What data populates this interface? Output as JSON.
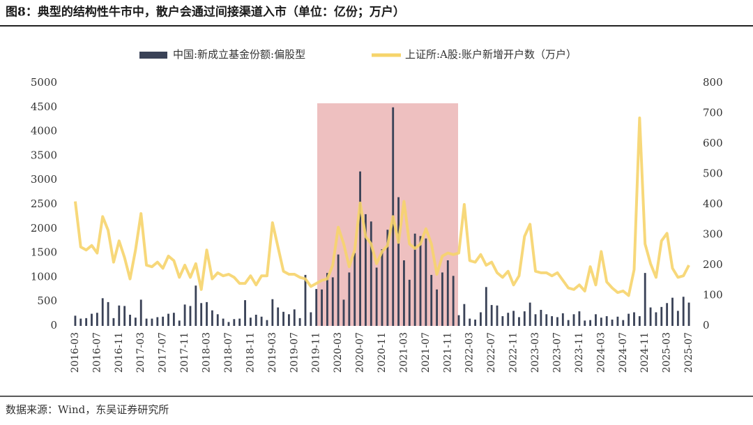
{
  "chart_data": {
    "type": "combo",
    "title": "图8：典型的结构性牛市中，散户会通过间接渠道入市（单位：亿份；万户）",
    "source": "数据来源：Wind，东吴证券研究所",
    "legend": "top",
    "categories": [
      "2016-03",
      null,
      null,
      null,
      "2016-07",
      null,
      null,
      null,
      "2016-11",
      null,
      null,
      null,
      "2017-03",
      null,
      null,
      null,
      "2017-07",
      null,
      null,
      null,
      "2017-11",
      null,
      null,
      null,
      "2018-03",
      null,
      null,
      null,
      "2018-07",
      null,
      null,
      null,
      "2018-11",
      null,
      null,
      null,
      "2019-03",
      null,
      null,
      null,
      "2019-07",
      null,
      null,
      null,
      "2019-11",
      null,
      null,
      null,
      "2020-03",
      null,
      null,
      null,
      "2020-07",
      null,
      null,
      null,
      "2020-11",
      null,
      null,
      null,
      "2021-03",
      null,
      null,
      null,
      "2021-07",
      null,
      null,
      null,
      "2021-11",
      null,
      null,
      null,
      "2022-03",
      null,
      null,
      null,
      "2022-07",
      null,
      null,
      null,
      "2022-11",
      null,
      null,
      null,
      "2023-03",
      null,
      null,
      null,
      "2023-07",
      null,
      null,
      null,
      "2023-11",
      null,
      null,
      null,
      "2024-03",
      null,
      null,
      null,
      "2024-07",
      null,
      null,
      null,
      "2024-11",
      null,
      null,
      null,
      "2025-03",
      null,
      null,
      null,
      "2025-07"
    ],
    "series": [
      {
        "name": "中国:新成立基金份额:偏股型",
        "type": "bar",
        "color": "#3a4257",
        "values": [
          210,
          150,
          160,
          250,
          270,
          570,
          490,
          160,
          420,
          410,
          230,
          170,
          540,
          150,
          150,
          180,
          190,
          250,
          270,
          110,
          440,
          410,
          830,
          470,
          490,
          320,
          240,
          150,
          80,
          140,
          150,
          530,
          170,
          230,
          190,
          120,
          550,
          380,
          290,
          240,
          340,
          160,
          1050,
          280,
          760,
          750,
          1090,
          1000,
          1470,
          540,
          1100,
          1500,
          3180,
          2300,
          2150,
          1200,
          1580,
          1980,
          4500,
          2650,
          1350,
          950,
          1900,
          1850,
          1800,
          1050,
          750,
          1100,
          1350,
          1030,
          220,
          450,
          150,
          130,
          280,
          800,
          430,
          420,
          200,
          270,
          310,
          180,
          300,
          480,
          240,
          330,
          240,
          200,
          180,
          260,
          120,
          240,
          300,
          110,
          120,
          240,
          170,
          200,
          130,
          190,
          120,
          250,
          280,
          200,
          1090,
          380,
          280,
          390,
          470,
          580,
          310,
          600,
          480
        ]
      },
      {
        "name": "上证所:A股:账户新增开户数（万户）",
        "type": "line",
        "axis": "y2",
        "color": "#f6d46b",
        "values": [
          410,
          260,
          250,
          265,
          240,
          360,
          315,
          210,
          280,
          225,
          155,
          250,
          370,
          200,
          195,
          210,
          190,
          230,
          215,
          160,
          200,
          160,
          205,
          120,
          250,
          155,
          175,
          165,
          170,
          160,
          140,
          140,
          165,
          135,
          165,
          165,
          340,
          260,
          180,
          170,
          170,
          160,
          155,
          130,
          140,
          150,
          155,
          200,
          325,
          270,
          195,
          250,
          405,
          295,
          270,
          205,
          245,
          265,
          360,
          275,
          410,
          270,
          255,
          270,
          320,
          270,
          170,
          230,
          240,
          235,
          240,
          400,
          215,
          210,
          235,
          200,
          210,
          175,
          160,
          180,
          135,
          165,
          295,
          335,
          180,
          175,
          175,
          165,
          175,
          150,
          125,
          120,
          135,
          115,
          195,
          135,
          245,
          145,
          125,
          110,
          115,
          100,
          185,
          685,
          270,
          205,
          160,
          280,
          305,
          190,
          160,
          165,
          200
        ]
      }
    ],
    "ylim": [
      0,
      5000
    ],
    "yticks": [
      0,
      500,
      1000,
      1500,
      2000,
      2500,
      3000,
      3500,
      4000,
      4500,
      5000
    ],
    "y2lim": [
      0,
      800
    ],
    "y2ticks": [
      0,
      100,
      200,
      300,
      400,
      500,
      600,
      700,
      800
    ]
  }
}
